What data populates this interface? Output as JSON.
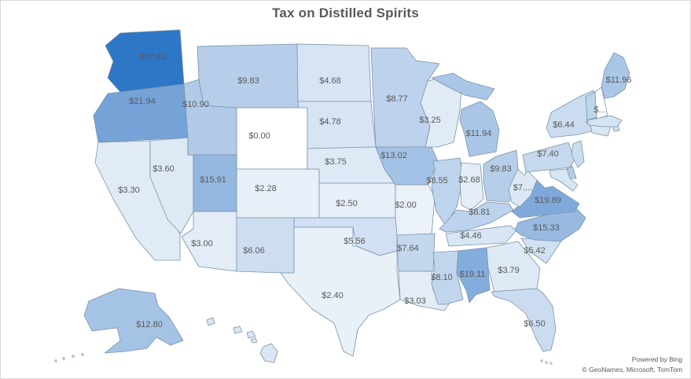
{
  "title": "Tax on Distilled Spirits",
  "attribution": {
    "line1": "Powered by Bing",
    "line2": "© GeoNames, Microsoft, TomTom"
  },
  "colors": {
    "background": "#ffffff",
    "frame_border": "#d9d9d9",
    "state_border": "#7b93a9",
    "title_color": "#595959",
    "label_color": "#595959",
    "scale_min_color": "#ffffff",
    "scale_max_color": "#2e76c6"
  },
  "chart_data": {
    "type": "heatmap",
    "map_type": "us-state-choropleth",
    "title": "Tax on Distilled Spirits",
    "value_prefix": "$",
    "value_min": 0.0,
    "value_max": 37.81,
    "states": [
      {
        "abbr": "WA",
        "name": "Washington",
        "label": "$37.81",
        "value": 37.81,
        "fill": "#2e76c6"
      },
      {
        "abbr": "OR",
        "name": "Oregon",
        "label": "$21.94",
        "value": 21.94,
        "fill": "#75a3d8"
      },
      {
        "abbr": "CA",
        "name": "California",
        "label": "$3.30",
        "value": 3.3,
        "fill": "#e1ebf6"
      },
      {
        "abbr": "NV",
        "name": "Nevada",
        "label": "$3.60",
        "value": 3.6,
        "fill": "#dee9f6"
      },
      {
        "abbr": "ID",
        "name": "Idaho",
        "label": "$10.90",
        "value": 10.9,
        "fill": "#b0cae8"
      },
      {
        "abbr": "MT",
        "name": "Montana",
        "label": "$9.83",
        "value": 9.83,
        "fill": "#b7ceea"
      },
      {
        "abbr": "WY",
        "name": "Wyoming",
        "label": "$0.00",
        "value": 0.0,
        "fill": "#ffffff"
      },
      {
        "abbr": "UT",
        "name": "Utah",
        "label": "$15.91",
        "value": 15.91,
        "fill": "#94b7e0"
      },
      {
        "abbr": "CO",
        "name": "Colorado",
        "label": "$2.28",
        "value": 2.28,
        "fill": "#e8f0f9"
      },
      {
        "abbr": "AZ",
        "name": "Arizona",
        "label": "$3.00",
        "value": 3.0,
        "fill": "#e3ecf7"
      },
      {
        "abbr": "NM",
        "name": "New Mexico",
        "label": "$6.06",
        "value": 6.06,
        "fill": "#cedef1"
      },
      {
        "abbr": "ND",
        "name": "North Dakota",
        "label": "$4.68",
        "value": 4.68,
        "fill": "#d7e4f4"
      },
      {
        "abbr": "SD",
        "name": "South Dakota",
        "label": "$4.78",
        "value": 4.78,
        "fill": "#d6e4f3"
      },
      {
        "abbr": "NE",
        "name": "Nebraska",
        "label": "$3.75",
        "value": 3.75,
        "fill": "#dde9f5"
      },
      {
        "abbr": "KS",
        "name": "Kansas",
        "label": "$2.50",
        "value": 2.5,
        "fill": "#e7eff8"
      },
      {
        "abbr": "OK",
        "name": "Oklahoma",
        "label": "$5.56",
        "value": 5.56,
        "fill": "#d1e0f2"
      },
      {
        "abbr": "TX",
        "name": "Texas",
        "label": "$2.40",
        "value": 2.4,
        "fill": "#e8f0f8"
      },
      {
        "abbr": "MN",
        "name": "Minnesota",
        "label": "$8.77",
        "value": 8.77,
        "fill": "#bdd2ec"
      },
      {
        "abbr": "IA",
        "name": "Iowa",
        "label": "$13.02",
        "value": 13.02,
        "fill": "#a4c2e5"
      },
      {
        "abbr": "MO",
        "name": "Missouri",
        "label": "$2.00",
        "value": 2.0,
        "fill": "#ebf1f9"
      },
      {
        "abbr": "AR",
        "name": "Arkansas",
        "label": "$7.64",
        "value": 7.64,
        "fill": "#c4d7ee"
      },
      {
        "abbr": "LA",
        "name": "Louisiana",
        "label": "$3.03",
        "value": 3.03,
        "fill": "#e3ecf7"
      },
      {
        "abbr": "WI",
        "name": "Wisconsin",
        "label": "$3.25",
        "value": 3.25,
        "fill": "#e1ebf6"
      },
      {
        "abbr": "IL",
        "name": "Illinois",
        "label": "$8.55",
        "value": 8.55,
        "fill": "#bed3ec"
      },
      {
        "abbr": "MI",
        "name": "Michigan",
        "label": "$11.94",
        "value": 11.94,
        "fill": "#aac6e7"
      },
      {
        "abbr": "IN",
        "name": "Indiana",
        "label": "$2.68",
        "value": 2.68,
        "fill": "#e5eef8"
      },
      {
        "abbr": "OH",
        "name": "Ohio",
        "label": "$9.83",
        "value": 9.83,
        "fill": "#b7ceea"
      },
      {
        "abbr": "KY",
        "name": "Kentucky",
        "label": "$8.81",
        "value": 8.81,
        "fill": "#bdd2ec"
      },
      {
        "abbr": "TN",
        "name": "Tennessee",
        "label": "$4.46",
        "value": 4.46,
        "fill": "#d8e5f4"
      },
      {
        "abbr": "MS",
        "name": "Mississippi",
        "label": "$8.10",
        "value": 8.1,
        "fill": "#c1d5ed"
      },
      {
        "abbr": "AL",
        "name": "Alabama",
        "label": "$19.11",
        "value": 19.11,
        "fill": "#84acdc"
      },
      {
        "abbr": "GA",
        "name": "Georgia",
        "label": "$3.79",
        "value": 3.79,
        "fill": "#dde9f5"
      },
      {
        "abbr": "FL",
        "name": "Florida",
        "label": "$6.50",
        "value": 6.5,
        "fill": "#cbdcf0"
      },
      {
        "abbr": "SC",
        "name": "South Carolina",
        "label": "$5.42",
        "value": 5.42,
        "fill": "#d2e1f2"
      },
      {
        "abbr": "NC",
        "name": "North Carolina",
        "label": "$15.33",
        "value": 15.33,
        "fill": "#98bae1"
      },
      {
        "abbr": "VA",
        "name": "Virginia",
        "label": "$19.89",
        "value": 19.89,
        "fill": "#80a9db"
      },
      {
        "abbr": "WV",
        "name": "West Virginia",
        "label": "$7....",
        "value": null,
        "fill": "#dce8f4"
      },
      {
        "abbr": "PA",
        "name": "Pennsylvania",
        "label": "$7.40",
        "value": 7.4,
        "fill": "#c5d8ee"
      },
      {
        "abbr": "NY",
        "name": "New York",
        "label": "$6.44",
        "value": 6.44,
        "fill": "#cbdcf0"
      },
      {
        "abbr": "NJ",
        "name": "New Jersey",
        "label": "",
        "value": null,
        "fill": "#cbdef0"
      },
      {
        "abbr": "DE",
        "name": "Delaware",
        "label": "",
        "value": null,
        "fill": "#b0cde7"
      },
      {
        "abbr": "MD",
        "name": "Maryland",
        "label": "",
        "value": null,
        "fill": "#d8e6f3"
      },
      {
        "abbr": "CT",
        "name": "Connecticut",
        "label": "",
        "value": null,
        "fill": "#d9e6f4"
      },
      {
        "abbr": "RI",
        "name": "Rhode Island",
        "label": "",
        "value": null,
        "fill": "#cddff1"
      },
      {
        "abbr": "MA",
        "name": "Massachusetts",
        "label": "",
        "value": null,
        "fill": "#d6e5f3"
      },
      {
        "abbr": "VT",
        "name": "Vermont",
        "label": "",
        "value": null,
        "fill": "#bdd6ec"
      },
      {
        "abbr": "NH",
        "name": "New Hampshire",
        "label": "$...",
        "value": null,
        "fill": "#ffffff"
      },
      {
        "abbr": "ME",
        "name": "Maine",
        "label": "$11.96",
        "value": 11.96,
        "fill": "#aac6e7"
      },
      {
        "abbr": "AK",
        "name": "Alaska",
        "label": "$12.80",
        "value": 12.8,
        "fill": "#a5c3e5"
      },
      {
        "abbr": "HI",
        "name": "Hawaii",
        "label": "",
        "value": null,
        "fill": "#d9e7f4"
      }
    ]
  }
}
